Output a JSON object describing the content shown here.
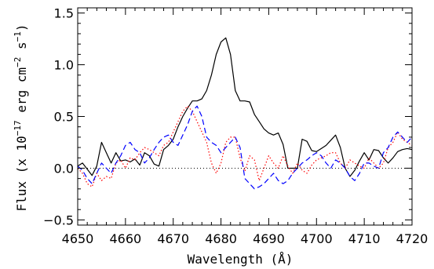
{
  "chart_data": {
    "type": "line",
    "xlabel": "Wavelength (Å)",
    "ylabel": {
      "prefix": "Flux (x 10",
      "exp1": "−17",
      "mid": " erg cm",
      "exp2": "−2",
      "mid2": " s",
      "exp3": "−1",
      "suffix": ")"
    },
    "xlim": [
      4650,
      4720
    ],
    "ylim": [
      -0.55,
      1.55
    ],
    "x_ticks": [
      4650,
      4660,
      4670,
      4680,
      4690,
      4700,
      4710,
      4720
    ],
    "x_tick_labels": [
      "4650",
      "4660",
      "4670",
      "4680",
      "4690",
      "4700",
      "4710",
      "4720"
    ],
    "y_ticks": [
      -0.5,
      0.0,
      0.5,
      1.0,
      1.5
    ],
    "y_tick_labels": [
      "−0.5",
      "0.0",
      "0.5",
      "1.0",
      "1.5"
    ],
    "zero_line": true,
    "series": [
      {
        "style": "solid",
        "color": "#000000",
        "x": [
          4650,
          4651,
          4652,
          4653,
          4654,
          4655,
          4656,
          4657,
          4658,
          4659,
          4660,
          4661,
          4662,
          4663,
          4664,
          4665,
          4666,
          4667,
          4668,
          4669,
          4670,
          4671,
          4672,
          4673,
          4674,
          4675,
          4676,
          4677,
          4678,
          4679,
          4680,
          4681,
          4682,
          4683,
          4684,
          4685,
          4686,
          4687,
          4688,
          4689,
          4690,
          4691,
          4692,
          4693,
          4694,
          4695,
          4696,
          4697,
          4698,
          4699,
          4700,
          4701,
          4702,
          4703,
          4704,
          4705,
          4706,
          4707,
          4708,
          4709,
          4710,
          4711,
          4712,
          4713,
          4714,
          4715,
          4716,
          4717,
          4718,
          4719,
          4720
        ],
        "y": [
          0.02,
          0.05,
          -0.01,
          -0.07,
          0.02,
          0.25,
          0.15,
          0.05,
          0.15,
          0.07,
          0.08,
          0.06,
          0.09,
          0.03,
          0.15,
          0.12,
          0.04,
          0.02,
          0.18,
          0.22,
          0.28,
          0.4,
          0.5,
          0.58,
          0.65,
          0.65,
          0.67,
          0.75,
          0.9,
          1.1,
          1.22,
          1.26,
          1.1,
          0.75,
          0.65,
          0.65,
          0.64,
          0.52,
          0.45,
          0.38,
          0.34,
          0.32,
          0.34,
          0.23,
          0.0,
          0.0,
          0.0,
          0.28,
          0.26,
          0.17,
          0.16,
          0.19,
          0.22,
          0.27,
          0.32,
          0.2,
          0.0,
          -0.08,
          -0.02,
          0.07,
          0.15,
          0.08,
          0.18,
          0.17,
          0.1,
          0.05,
          0.1,
          0.16,
          0.18,
          0.19,
          0.18
        ]
      },
      {
        "style": "dotted",
        "color": "#ff0000",
        "x": [
          4650,
          4651,
          4652,
          4653,
          4654,
          4655,
          4656,
          4657,
          4658,
          4659,
          4660,
          4661,
          4662,
          4663,
          4664,
          4665,
          4666,
          4667,
          4668,
          4669,
          4670,
          4671,
          4672,
          4673,
          4674,
          4675,
          4676,
          4677,
          4678,
          4679,
          4680,
          4681,
          4682,
          4683,
          4684,
          4685,
          4686,
          4687,
          4688,
          4689,
          4690,
          4691,
          4692,
          4693,
          4694,
          4695,
          4696,
          4697,
          4698,
          4699,
          4700,
          4701,
          4702,
          4703,
          4704,
          4705,
          4706,
          4707,
          4708,
          4709,
          4710,
          4711,
          4712,
          4713,
          4714,
          4715,
          4716,
          4717,
          4718,
          4719,
          4720
        ],
        "y": [
          0.0,
          -0.05,
          -0.15,
          -0.18,
          -0.05,
          -0.12,
          -0.08,
          -0.1,
          0.05,
          0.08,
          0.0,
          0.1,
          0.08,
          0.15,
          0.2,
          0.18,
          0.15,
          0.12,
          0.22,
          0.25,
          0.35,
          0.45,
          0.55,
          0.6,
          0.55,
          0.45,
          0.35,
          0.25,
          0.05,
          -0.05,
          0.05,
          0.25,
          0.3,
          0.3,
          0.1,
          -0.03,
          0.12,
          0.08,
          -0.12,
          0.0,
          0.12,
          0.05,
          0.0,
          0.12,
          0.02,
          -0.05,
          0.05,
          -0.02,
          -0.05,
          0.03,
          0.08,
          0.1,
          0.12,
          0.15,
          0.15,
          0.05,
          0.0,
          0.08,
          0.05,
          0.02,
          0.0,
          0.1,
          0.05,
          0.0,
          0.05,
          0.2,
          0.25,
          0.35,
          0.28,
          0.25,
          0.22
        ]
      },
      {
        "style": "dashed",
        "color": "#0000ff",
        "x": [
          4650,
          4651,
          4652,
          4653,
          4654,
          4655,
          4656,
          4657,
          4658,
          4659,
          4660,
          4661,
          4662,
          4663,
          4664,
          4665,
          4666,
          4667,
          4668,
          4669,
          4670,
          4671,
          4672,
          4673,
          4674,
          4675,
          4676,
          4677,
          4678,
          4679,
          4680,
          4681,
          4682,
          4683,
          4684,
          4685,
          4686,
          4687,
          4688,
          4689,
          4690,
          4691,
          4692,
          4693,
          4694,
          4695,
          4696,
          4697,
          4698,
          4699,
          4700,
          4701,
          4702,
          4703,
          4704,
          4705,
          4706,
          4707,
          4708,
          4709,
          4710,
          4711,
          4712,
          4713,
          4714,
          4715,
          4716,
          4717,
          4718,
          4719,
          4720
        ],
        "y": [
          0.02,
          -0.02,
          -0.1,
          -0.15,
          -0.05,
          0.05,
          0.0,
          -0.05,
          0.05,
          0.12,
          0.22,
          0.25,
          0.18,
          0.15,
          0.05,
          0.1,
          0.18,
          0.25,
          0.3,
          0.32,
          0.25,
          0.22,
          0.32,
          0.42,
          0.55,
          0.6,
          0.5,
          0.3,
          0.25,
          0.22,
          0.15,
          0.2,
          0.25,
          0.3,
          0.2,
          -0.1,
          -0.15,
          -0.2,
          -0.18,
          -0.15,
          -0.1,
          -0.05,
          -0.12,
          -0.15,
          -0.12,
          -0.05,
          0.0,
          0.05,
          0.08,
          0.12,
          0.15,
          0.12,
          0.05,
          0.0,
          0.08,
          0.05,
          0.0,
          -0.08,
          -0.12,
          -0.05,
          0.05,
          0.05,
          0.02,
          0.0,
          0.15,
          0.2,
          0.3,
          0.35,
          0.3,
          0.25,
          0.3
        ]
      }
    ]
  }
}
